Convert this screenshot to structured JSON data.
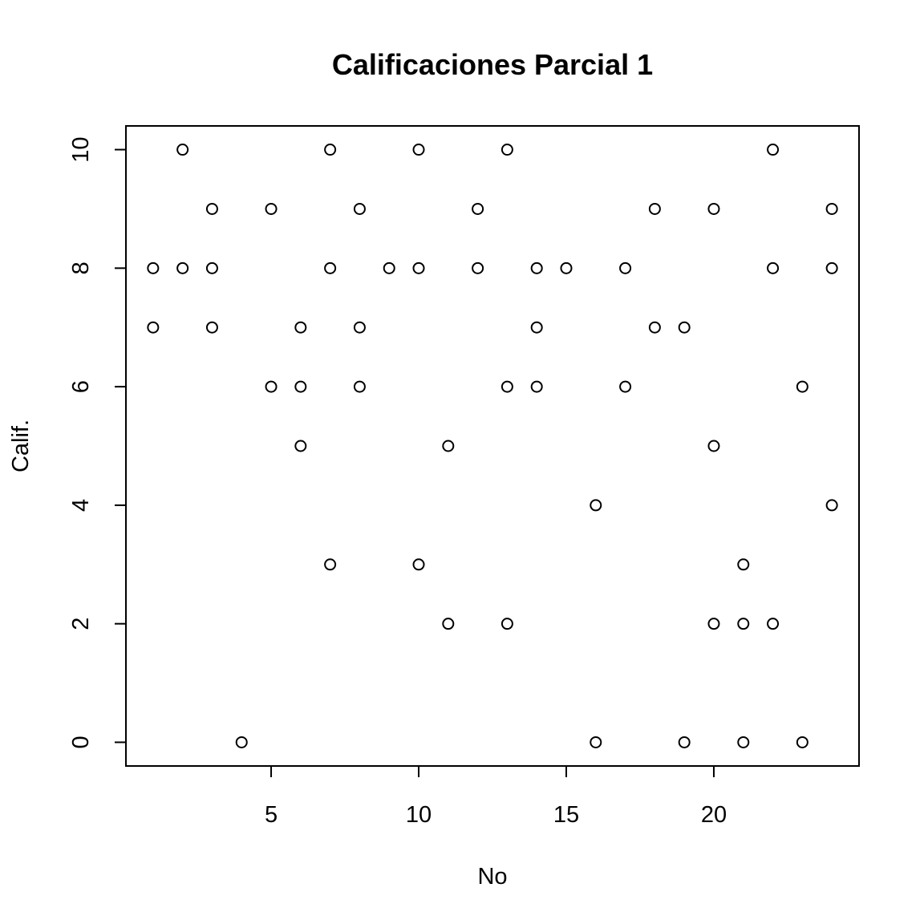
{
  "chart_data": {
    "type": "scatter",
    "title": "Calificaciones Parcial 1",
    "xlabel": "No",
    "ylabel": "Calif.",
    "xlim": [
      0.08,
      24.92
    ],
    "ylim": [
      -0.4,
      10.4
    ],
    "xticks": [
      5,
      10,
      15,
      20
    ],
    "yticks": [
      0,
      2,
      4,
      6,
      8,
      10
    ],
    "grid": false,
    "marker": "open-circle",
    "points": [
      {
        "x": 1,
        "y": 8
      },
      {
        "x": 1,
        "y": 7
      },
      {
        "x": 2,
        "y": 10
      },
      {
        "x": 2,
        "y": 8
      },
      {
        "x": 3,
        "y": 9
      },
      {
        "x": 3,
        "y": 8
      },
      {
        "x": 3,
        "y": 7
      },
      {
        "x": 4,
        "y": 0
      },
      {
        "x": 5,
        "y": 9
      },
      {
        "x": 5,
        "y": 6
      },
      {
        "x": 6,
        "y": 7
      },
      {
        "x": 6,
        "y": 6
      },
      {
        "x": 6,
        "y": 5
      },
      {
        "x": 7,
        "y": 10
      },
      {
        "x": 7,
        "y": 8
      },
      {
        "x": 7,
        "y": 3
      },
      {
        "x": 8,
        "y": 9
      },
      {
        "x": 8,
        "y": 7
      },
      {
        "x": 8,
        "y": 6
      },
      {
        "x": 9,
        "y": 8
      },
      {
        "x": 10,
        "y": 10
      },
      {
        "x": 10,
        "y": 8
      },
      {
        "x": 10,
        "y": 3
      },
      {
        "x": 11,
        "y": 5
      },
      {
        "x": 11,
        "y": 2
      },
      {
        "x": 12,
        "y": 9
      },
      {
        "x": 12,
        "y": 8
      },
      {
        "x": 13,
        "y": 10
      },
      {
        "x": 13,
        "y": 6
      },
      {
        "x": 13,
        "y": 2
      },
      {
        "x": 14,
        "y": 8
      },
      {
        "x": 14,
        "y": 7
      },
      {
        "x": 14,
        "y": 6
      },
      {
        "x": 15,
        "y": 8
      },
      {
        "x": 16,
        "y": 4
      },
      {
        "x": 16,
        "y": 0
      },
      {
        "x": 17,
        "y": 8
      },
      {
        "x": 17,
        "y": 6
      },
      {
        "x": 18,
        "y": 9
      },
      {
        "x": 18,
        "y": 7
      },
      {
        "x": 19,
        "y": 7
      },
      {
        "x": 19,
        "y": 0
      },
      {
        "x": 20,
        "y": 9
      },
      {
        "x": 20,
        "y": 5
      },
      {
        "x": 20,
        "y": 2
      },
      {
        "x": 21,
        "y": 3
      },
      {
        "x": 21,
        "y": 2
      },
      {
        "x": 21,
        "y": 0
      },
      {
        "x": 22,
        "y": 10
      },
      {
        "x": 22,
        "y": 8
      },
      {
        "x": 22,
        "y": 2
      },
      {
        "x": 23,
        "y": 6
      },
      {
        "x": 23,
        "y": 0
      },
      {
        "x": 24,
        "y": 9
      },
      {
        "x": 24,
        "y": 8
      },
      {
        "x": 24,
        "y": 4
      }
    ]
  }
}
